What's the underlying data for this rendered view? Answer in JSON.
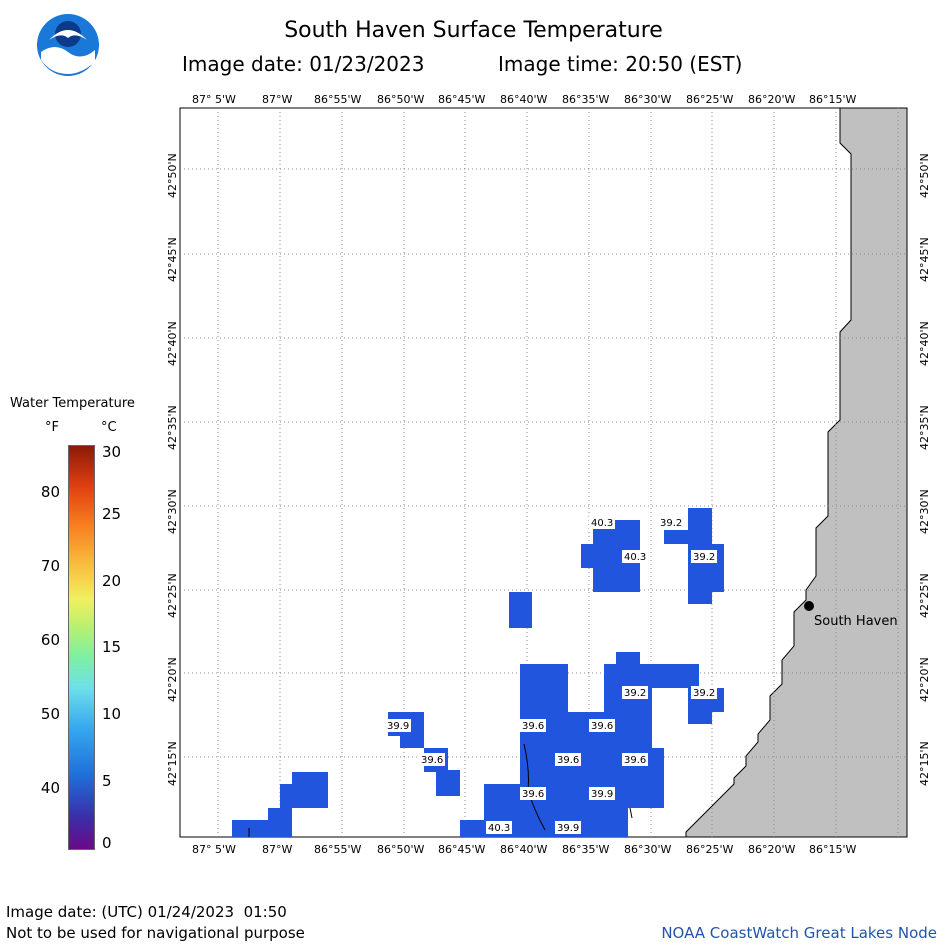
{
  "header": {
    "title": "South Haven Surface Temperature",
    "image_date": "Image date: 01/23/2023",
    "image_time": "Image time: 20:50 (EST)"
  },
  "map": {
    "lon_labels": [
      "87° 5'W",
      "87°W",
      "86°55'W",
      "86°50'W",
      "86°45'W",
      "86°40'W",
      "86°35'W",
      "86°30'W",
      "86°25'W",
      "86°20'W",
      "86°15'W"
    ],
    "lat_labels": [
      "42°50'N",
      "42°45'N",
      "42°40'N",
      "42°35'N",
      "42°30'N",
      "42°25'N",
      "42°20'N",
      "42°15'N"
    ],
    "city_label": "South Haven",
    "temp_labels": [
      "40.3",
      "39.2",
      "40.3",
      "39.2",
      "39.2",
      "39.2",
      "39.9",
      "39.6",
      "39.6",
      "39.6",
      "39.6",
      "39.6",
      "39.6",
      "39.9",
      "40.3",
      "39.9"
    ],
    "colors": {
      "water_temp": "#2255dd",
      "land": "#c0c0c0",
      "grid": "#888888"
    }
  },
  "legend": {
    "title": "Water Temperature",
    "unit_f": "°F",
    "unit_c": "°C",
    "f_ticks": [
      "80",
      "70",
      "60",
      "50",
      "40"
    ],
    "c_ticks": [
      "30",
      "25",
      "20",
      "15",
      "10",
      "5",
      "0"
    ]
  },
  "footer": {
    "utc_date": "Image date: (UTC) 01/24/2023  01:50",
    "disclaimer": "Not to be used for navigational purpose",
    "node": "NOAA CoastWatch Great Lakes Node"
  }
}
